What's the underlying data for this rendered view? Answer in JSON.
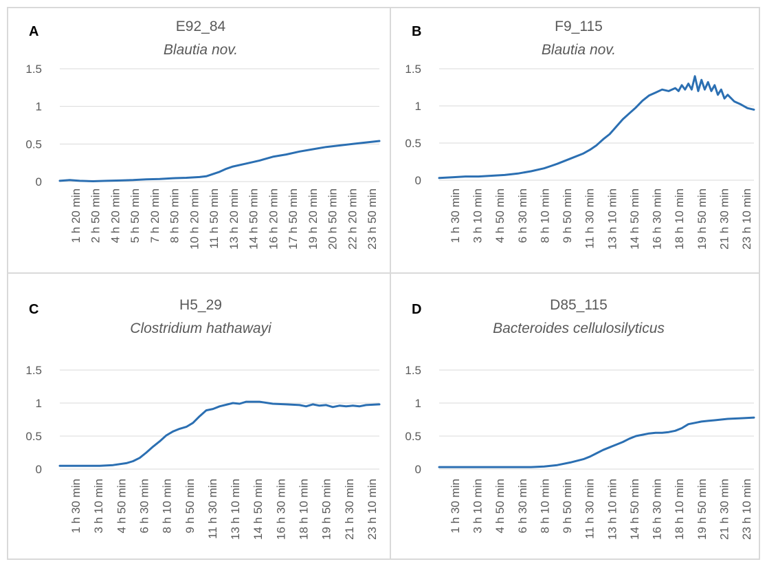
{
  "chart_data": [
    {
      "type": "line",
      "panel_label": "A",
      "title": "E92_84",
      "subtitle": "Blautia nov.",
      "ylim": [
        0,
        1.5
      ],
      "yticks": [
        "0",
        "0.5",
        "1",
        "1.5"
      ],
      "x_tick_labels": [
        "1 h 20 min",
        "2 h 50 min",
        "4 h 20 min",
        "5 h 50 min",
        "7 h 20 min",
        "8 h 50 min",
        "10 h 20 min",
        "11 h 50 min",
        "13 h 20 min",
        "14 h 50 min",
        "16 h 20 min",
        "17 h 50 min",
        "19 h 20 min",
        "20 h 50 min",
        "22 h 20 min",
        "23 h 50 min"
      ],
      "grid": true,
      "color": "#2b6fb2",
      "x_hours": [
        0,
        0.75,
        1.5,
        2.5,
        3.5,
        4.5,
        5.5,
        6.5,
        7.5,
        8.5,
        9.5,
        10.5,
        11,
        11.5,
        12,
        12.5,
        13,
        14,
        15,
        16,
        17,
        18,
        19,
        20,
        21,
        22,
        23,
        24
      ],
      "series": [
        {
          "values": [
            0.01,
            0.02,
            0.01,
            0.005,
            0.01,
            0.015,
            0.02,
            0.03,
            0.035,
            0.045,
            0.05,
            0.06,
            0.07,
            0.1,
            0.13,
            0.17,
            0.2,
            0.24,
            0.28,
            0.33,
            0.36,
            0.4,
            0.43,
            0.46,
            0.48,
            0.5,
            0.52,
            0.54
          ]
        }
      ]
    },
    {
      "type": "line",
      "panel_label": "B",
      "title": "F9_115",
      "subtitle": "Blautia nov.",
      "ylim": [
        0,
        1.5
      ],
      "yticks": [
        "0",
        "0.5",
        "1",
        "1.5"
      ],
      "x_tick_labels": [
        "1 h 30 min",
        "3 h 10 min",
        "4 h 50 min",
        "6 h 30 min",
        "8 h 10 min",
        "9 h 50 min",
        "11 h 30 min",
        "13 h 10 min",
        "14 h 50 min",
        "16 h 30 min",
        "18 h 10 min",
        "19 h 50 min",
        "21 h 30 min",
        "23 h 10 min"
      ],
      "grid": true,
      "color": "#2b6fb2",
      "x_hours": [
        0,
        1,
        2,
        3,
        4,
        5,
        6,
        7,
        8,
        8.5,
        9,
        10,
        11,
        11.5,
        12,
        12.5,
        13,
        13.5,
        14,
        14.5,
        15,
        15.5,
        16,
        16.5,
        17,
        17.5,
        18,
        18.25,
        18.5,
        18.75,
        19,
        19.25,
        19.5,
        19.75,
        20,
        20.25,
        20.5,
        20.75,
        21,
        21.25,
        21.5,
        21.75,
        22,
        22.5,
        23,
        23.5,
        24
      ],
      "series": [
        {
          "values": [
            0.03,
            0.04,
            0.05,
            0.05,
            0.06,
            0.07,
            0.09,
            0.12,
            0.16,
            0.19,
            0.22,
            0.29,
            0.36,
            0.41,
            0.47,
            0.55,
            0.62,
            0.72,
            0.82,
            0.9,
            0.98,
            1.07,
            1.14,
            1.18,
            1.22,
            1.2,
            1.24,
            1.2,
            1.28,
            1.22,
            1.3,
            1.22,
            1.4,
            1.2,
            1.35,
            1.22,
            1.32,
            1.2,
            1.28,
            1.15,
            1.22,
            1.1,
            1.15,
            1.06,
            1.02,
            0.97,
            0.95
          ]
        }
      ]
    },
    {
      "type": "line",
      "panel_label": "C",
      "title": "H5_29",
      "subtitle": "Clostridium hathawayi",
      "ylim": [
        0,
        1.5
      ],
      "yticks": [
        "0",
        "0.5",
        "1",
        "1.5"
      ],
      "x_tick_labels": [
        "1 h 30 min",
        "3 h 10 min",
        "4 h 50 min",
        "6 h 30 min",
        "8 h 10 min",
        "9 h 50 min",
        "11 h 30 min",
        "13 h 10 min",
        "14 h 50 min",
        "16 h 30 min",
        "18 h 10 min",
        "19 h 50 min",
        "21 h 30 min",
        "23 h 10 min"
      ],
      "grid": true,
      "color": "#2b6fb2",
      "x_hours": [
        0,
        1,
        2,
        3,
        4,
        5,
        5.5,
        6,
        6.5,
        7,
        7.5,
        8,
        8.5,
        9,
        9.5,
        10,
        10.5,
        11,
        11.5,
        12,
        13,
        13.5,
        14,
        15,
        16,
        17,
        18,
        18.5,
        19,
        19.5,
        20,
        20.5,
        21,
        21.5,
        22,
        22.5,
        23,
        24
      ],
      "series": [
        {
          "values": [
            0.05,
            0.05,
            0.05,
            0.05,
            0.06,
            0.09,
            0.12,
            0.17,
            0.25,
            0.34,
            0.42,
            0.51,
            0.57,
            0.61,
            0.64,
            0.7,
            0.8,
            0.89,
            0.91,
            0.95,
            1.0,
            0.99,
            1.02,
            1.02,
            0.99,
            0.98,
            0.97,
            0.95,
            0.98,
            0.96,
            0.97,
            0.94,
            0.96,
            0.95,
            0.96,
            0.95,
            0.97,
            0.98
          ]
        }
      ]
    },
    {
      "type": "line",
      "panel_label": "D",
      "title": "D85_115",
      "subtitle": "Bacteroides cellulosilyticus",
      "ylim": [
        0,
        1.5
      ],
      "yticks": [
        "0",
        "0.5",
        "1",
        "1.5"
      ],
      "x_tick_labels": [
        "1 h 30 min",
        "3 h 10 min",
        "4 h 50 min",
        "6 h 30 min",
        "8 h 10 min",
        "9 h 50 min",
        "11 h 30 min",
        "13 h 10 min",
        "14 h 50 min",
        "16 h 30 min",
        "18 h 10 min",
        "19 h 50 min",
        "21 h 30 min",
        "23 h 10 min"
      ],
      "grid": true,
      "color": "#2b6fb2",
      "x_hours": [
        0,
        1,
        2,
        3,
        4,
        5,
        6,
        7,
        8,
        9,
        10,
        11,
        11.5,
        12,
        12.5,
        13,
        13.5,
        14,
        14.5,
        15,
        15.5,
        16,
        16.5,
        17,
        17.5,
        18,
        18.5,
        19,
        19.5,
        20,
        20.5,
        21,
        22,
        23,
        24
      ],
      "series": [
        {
          "values": [
            0.03,
            0.03,
            0.03,
            0.03,
            0.03,
            0.03,
            0.03,
            0.03,
            0.04,
            0.06,
            0.1,
            0.15,
            0.19,
            0.24,
            0.29,
            0.33,
            0.37,
            0.41,
            0.46,
            0.5,
            0.52,
            0.54,
            0.55,
            0.55,
            0.56,
            0.58,
            0.62,
            0.68,
            0.7,
            0.72,
            0.73,
            0.74,
            0.76,
            0.77,
            0.78
          ]
        }
      ]
    }
  ]
}
